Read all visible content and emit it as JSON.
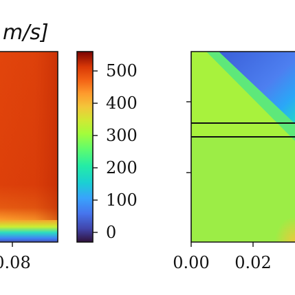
{
  "chart_data": [
    {
      "type": "heatmap",
      "title_partial": "m/s]",
      "x_tick_labels": [
        "0.08"
      ],
      "x_ticks": [
        0.08
      ],
      "description_colormap": "turbo"
    },
    {
      "type": "colorbar",
      "range": [
        -30,
        560
      ],
      "ticks": [
        0,
        100,
        200,
        300,
        400,
        500
      ],
      "tick_labels": [
        "0",
        "100",
        "200",
        "300",
        "400",
        "500"
      ]
    },
    {
      "type": "heatmap",
      "x_tick_labels": [
        "0.00",
        "0.02"
      ],
      "x_ticks": [
        0.0,
        0.02
      ],
      "horizontal_lines": 2
    }
  ]
}
